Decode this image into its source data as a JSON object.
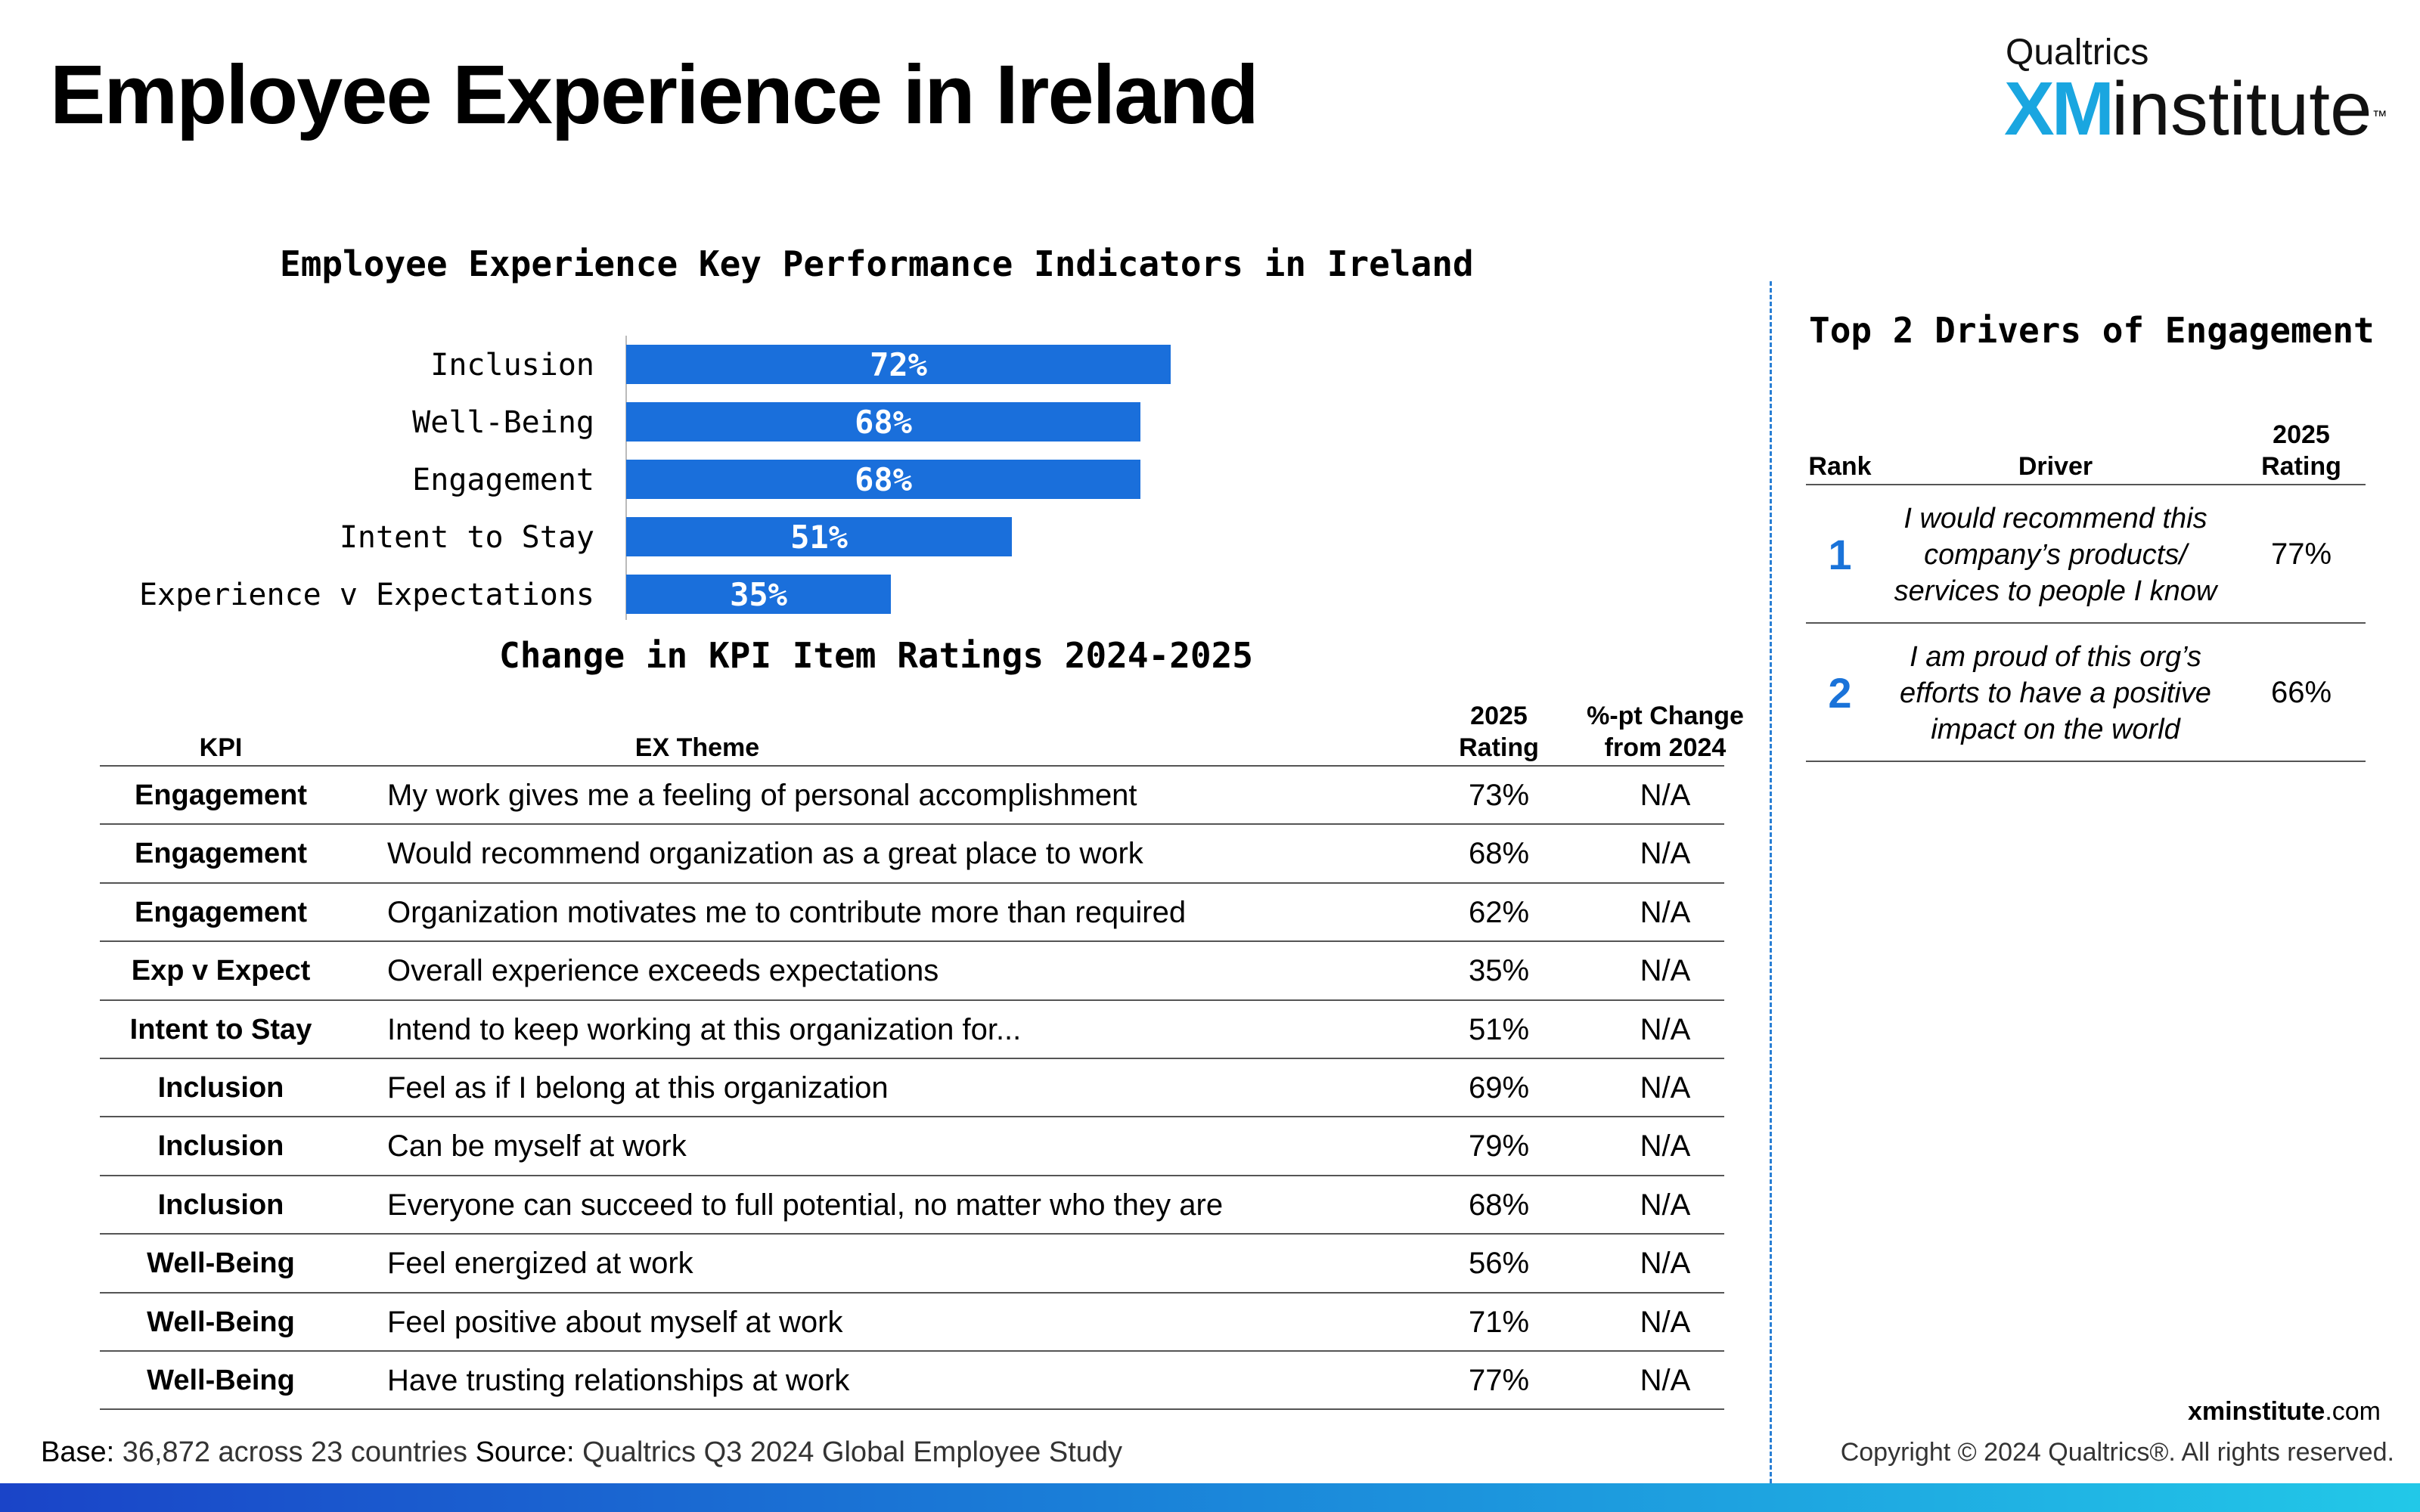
{
  "page": {
    "title": "Employee Experience in Ireland"
  },
  "logo": {
    "brand": "Qualtrics",
    "xm": "XM",
    "name": "institute",
    "tm": "™"
  },
  "chart_data": {
    "type": "bar",
    "orientation": "horizontal",
    "title": "Employee Experience Key Performance Indicators in Ireland",
    "categories": [
      "Inclusion",
      "Well-Being",
      "Engagement",
      "Intent to Stay",
      "Experience v Expectations"
    ],
    "values": [
      72,
      68,
      68,
      51,
      35
    ],
    "value_labels": [
      "72%",
      "68%",
      "68%",
      "51%",
      "35%"
    ],
    "xlim": [
      0,
      100
    ],
    "bar_color": "#1a6fdb",
    "label_color": "#ffffff",
    "grid": false
  },
  "table": {
    "title": "Change in KPI Item Ratings 2024-2025",
    "headers": {
      "kpi": "KPI",
      "theme": "EX Theme",
      "rating_line1": "2025",
      "rating_line2": "Rating",
      "change_line1": "%-pt Change",
      "change_line2": "from 2024"
    },
    "rows": [
      {
        "kpi": "Engagement",
        "theme": "My work gives me a feeling of personal accomplishment",
        "rating": "73%",
        "change": "N/A"
      },
      {
        "kpi": "Engagement",
        "theme": "Would recommend organization as a great place to work",
        "rating": "68%",
        "change": "N/A"
      },
      {
        "kpi": "Engagement",
        "theme": "Organization motivates me to contribute more than required",
        "rating": "62%",
        "change": "N/A"
      },
      {
        "kpi": "Exp v Expect",
        "theme": "Overall experience exceeds expectations",
        "rating": "35%",
        "change": "N/A"
      },
      {
        "kpi": "Intent to Stay",
        "theme": "Intend to keep working at this organization for...",
        "rating": "51%",
        "change": "N/A"
      },
      {
        "kpi": "Inclusion",
        "theme": "Feel as if I belong at this organization",
        "rating": "69%",
        "change": "N/A"
      },
      {
        "kpi": "Inclusion",
        "theme": "Can be myself at work",
        "rating": "79%",
        "change": "N/A"
      },
      {
        "kpi": "Inclusion",
        "theme": "Everyone can succeed to full potential, no matter who they are",
        "rating": "68%",
        "change": "N/A"
      },
      {
        "kpi": "Well-Being",
        "theme": "Feel energized at work",
        "rating": "56%",
        "change": "N/A"
      },
      {
        "kpi": "Well-Being",
        "theme": "Feel positive about myself at work",
        "rating": "71%",
        "change": "N/A"
      },
      {
        "kpi": "Well-Being",
        "theme": "Have trusting relationships at work",
        "rating": "77%",
        "change": "N/A"
      }
    ]
  },
  "drivers": {
    "title": "Top 2 Drivers of Engagement",
    "headers": {
      "rank": "Rank",
      "driver": "Driver",
      "rating_line1": "2025",
      "rating_line2": "Rating"
    },
    "rows": [
      {
        "rank": "1",
        "driver": "I would recommend this company’s products/ services to people I know",
        "rating": "77%"
      },
      {
        "rank": "2",
        "driver": "I am proud of this org’s efforts to have a positive impact on the world",
        "rating": "66%"
      }
    ]
  },
  "footer": {
    "base_label": "Base:",
    "base_text": "36,872 across 23 countries",
    "source_label": "Source:",
    "source_text": "Qualtrics Q3 2024 Global Employee Study",
    "site_bold": "xminstitute",
    "site_rest": ".com",
    "copyright": "Copyright © 2024 Qualtrics®. All rights reserved."
  },
  "colors": {
    "accent": "#1a6fdb",
    "divider": "#2a7fd4",
    "rank": "#1a73d9"
  }
}
